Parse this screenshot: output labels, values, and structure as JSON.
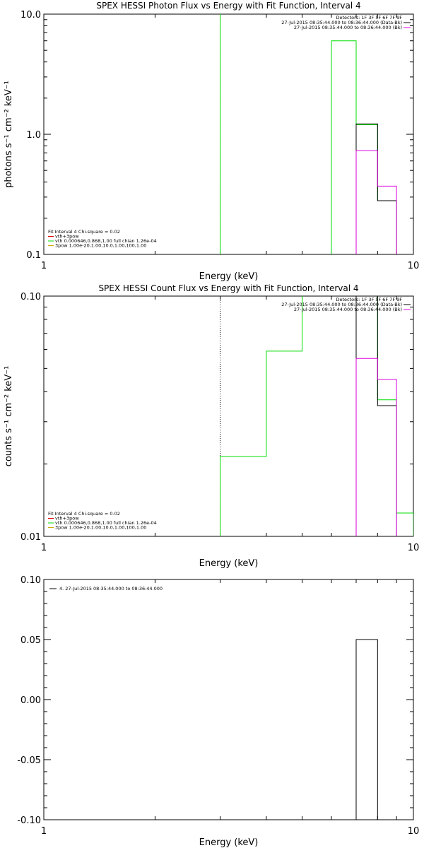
{
  "chart_data": [
    {
      "type": "line",
      "title": "SPEX HESSI Photon Flux vs Energy with Fit Function, Interval 4",
      "xlabel": "Energy (keV)",
      "ylabel": "photons s⁻¹ cm⁻² keV⁻¹",
      "x_scale": "log",
      "y_scale": "log",
      "xlim": [
        1,
        10
      ],
      "ylim": [
        0.1,
        10
      ],
      "x_ticks": [
        {
          "v": 1,
          "label": "1"
        },
        {
          "v": 10,
          "label": "10"
        }
      ],
      "y_ticks": [
        {
          "v": 0.1,
          "label": "0.1"
        },
        {
          "v": 1,
          "label": "1.0"
        },
        {
          "v": 10,
          "label": "10.0"
        }
      ],
      "legend_right": [
        {
          "text": "Detectors: 1F 3F 5F 6F 7F 9F",
          "color": ""
        },
        {
          "text": "27-Jul-2015 08:35:44.000 to 08:36:44.000 (Data-Bk)",
          "color": "#000000"
        },
        {
          "text": "27-Jul-2015 08:35:44.000 to 08:36:44.000 (Bk)",
          "color": "#dd00dd"
        }
      ],
      "legend_left": [
        {
          "text": "Fit Interval 4   Chi-square = 0.02",
          "color": ""
        },
        {
          "text": "vth+3pow",
          "color": "#dd0000"
        },
        {
          "text": "vth 0.000646,0.868,1.00   full chian 1.26e-04",
          "color": "#00dd00"
        },
        {
          "text": "3pow 1.00e-20,1.00,10.0,1.00,100,1.00",
          "color": "#ccaa00"
        }
      ],
      "series": [
        {
          "color": "#00dd00",
          "dash": false,
          "edges": [
            3,
            6
          ],
          "values": [
            12,
            12
          ]
        },
        {
          "color": "#00dd00",
          "dash": false,
          "edges": [
            6,
            7,
            8,
            9
          ],
          "values": [
            6,
            1.2,
            0.28
          ]
        },
        {
          "color": "#000000",
          "dash": false,
          "edges": [
            7,
            8,
            9
          ],
          "values": [
            1.22,
            0.28
          ]
        },
        {
          "color": "#dd00dd",
          "dash": false,
          "edges": [
            7,
            8,
            9
          ],
          "values": [
            0.73,
            0.37
          ]
        }
      ],
      "vlines": [
        {
          "x": 3,
          "color": "#00aa00",
          "dash": true
        }
      ]
    },
    {
      "type": "line",
      "title": "SPEX HESSI Count Flux vs Energy with Fit Function, Interval 4",
      "xlabel": "Energy (keV)",
      "ylabel": "counts s⁻¹ cm⁻² keV⁻¹",
      "x_scale": "log",
      "y_scale": "log",
      "xlim": [
        1,
        10
      ],
      "ylim": [
        0.01,
        0.1
      ],
      "x_ticks": [
        {
          "v": 1,
          "label": "1"
        },
        {
          "v": 10,
          "label": "10"
        }
      ],
      "y_ticks": [
        {
          "v": 0.01,
          "label": "0.01"
        },
        {
          "v": 0.1,
          "label": "0.10"
        }
      ],
      "legend_right": [
        {
          "text": "Detectors: 1F 3F 5F 6F 7F 9F",
          "color": ""
        },
        {
          "text": "27-Jul-2015 08:35:44.000 to 08:36:44.000 (Data-Bk)",
          "color": "#000000"
        },
        {
          "text": "27-Jul-2015 08:35:44.000 to 08:36:44.000 (Bk)",
          "color": "#dd00dd"
        }
      ],
      "legend_left": [
        {
          "text": "Fit Interval 4   Chi-square = 0.02",
          "color": ""
        },
        {
          "text": "vth+3pow",
          "color": "#dd0000"
        },
        {
          "text": "vth 0.000646,0.868,1.00   full chian 1.26e-04",
          "color": "#00dd00"
        },
        {
          "text": "3pow 1.00e-20,1.00,10.0,1.00,100,1.00",
          "color": "#ccaa00"
        }
      ],
      "series": [
        {
          "color": "#00dd00",
          "dash": false,
          "edges": [
            3,
            4,
            5,
            6,
            7,
            8,
            9,
            10
          ],
          "values": [
            0.0215,
            0.059,
            0.105,
            0.105,
            0.105,
            0.037,
            0.0125
          ]
        },
        {
          "color": "#000000",
          "dash": false,
          "edges": [
            7,
            8,
            9
          ],
          "values": [
            0.1,
            0.035
          ]
        },
        {
          "color": "#dd00dd",
          "dash": false,
          "edges": [
            7,
            8,
            9
          ],
          "values": [
            0.055,
            0.045
          ]
        }
      ],
      "vlines": [
        {
          "x": 3,
          "color": "#000000",
          "dash": true
        }
      ]
    },
    {
      "type": "line",
      "title": "",
      "xlabel": "Energy (keV)",
      "ylabel": "",
      "x_scale": "log",
      "y_scale": "linear",
      "xlim": [
        1,
        10
      ],
      "ylim": [
        -0.1,
        0.1
      ],
      "x_ticks": [
        {
          "v": 1,
          "label": "1"
        },
        {
          "v": 10,
          "label": "10"
        }
      ],
      "y_ticks": [
        {
          "v": -0.1,
          "label": "-0.10"
        },
        {
          "v": -0.05,
          "label": "-0.05"
        },
        {
          "v": 0,
          "label": "0.00"
        },
        {
          "v": 0.05,
          "label": "0.05"
        },
        {
          "v": 0.1,
          "label": "0.10"
        }
      ],
      "legend_right": [],
      "legend_left": [],
      "legend_top_left": [
        {
          "text": "4. 27-Jul-2015 08:35:44.000 to 08:36:44.000",
          "color": "#000000"
        }
      ],
      "series": [
        {
          "color": "#000000",
          "dash": false,
          "edges": [
            7,
            8,
            9
          ],
          "values": [
            0.05,
            -0.1
          ]
        }
      ],
      "vlines": []
    }
  ]
}
